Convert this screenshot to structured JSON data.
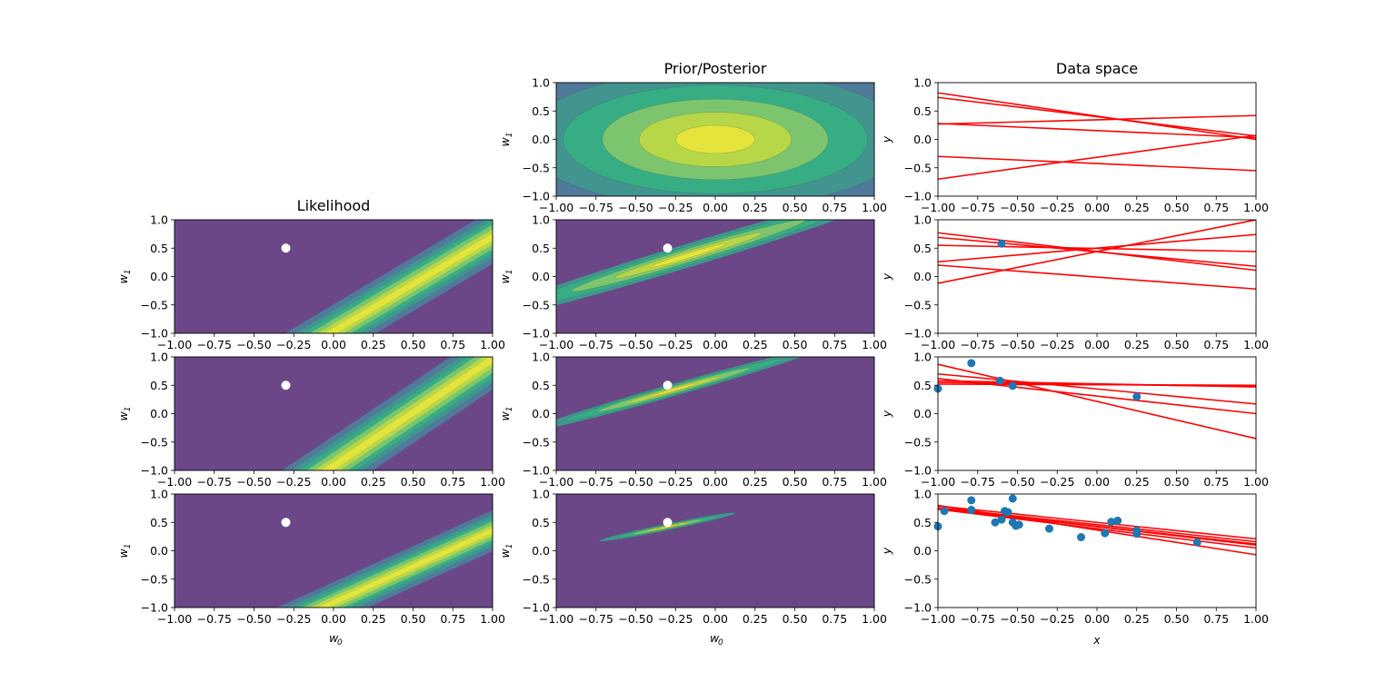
{
  "figure": {
    "title_prior_posterior": "Prior/Posterior",
    "title_likelihood": "Likelihood",
    "title_data_space": "Data space"
  },
  "axis_labels": {
    "w0_base": "w",
    "w0_sub": "0",
    "w1_base": "w",
    "w1_sub": "1",
    "x": "x",
    "y": "y"
  },
  "colors": {
    "background": "#6b4788",
    "levels": [
      "#6b4788",
      "#5f6198",
      "#4f7a9a",
      "#42958f",
      "#37ad84",
      "#7cc56e",
      "#b8d748",
      "#e4e43c"
    ],
    "line": "#ff0000",
    "points": "#1f77b4",
    "true_w": "#ffffff"
  },
  "true_w": [
    -0.3,
    0.5
  ],
  "chart_data": [
    {
      "type": "contour",
      "panel": "prior",
      "row": 0,
      "title": "Prior/Posterior",
      "xlabel": "",
      "ylabel": "w1",
      "xlim": [
        -1,
        1
      ],
      "ylim": [
        -1,
        1
      ],
      "xticks": [
        "−1.00",
        "−0.75",
        "−0.50",
        "−0.25",
        "0.00",
        "0.25",
        "0.50",
        "0.75",
        "1.00"
      ],
      "yticks": [
        "−1.0",
        "−0.5",
        "0.0",
        "0.5",
        "1.0"
      ],
      "mean": [
        0,
        0
      ],
      "sx": 0.5,
      "sy": 0.5,
      "rot": 0,
      "rings": [
        [
          0.92,
          0.92
        ],
        [
          0.73,
          0.73
        ],
        [
          0.58,
          0.58
        ],
        [
          0.43,
          0.43
        ],
        [
          0.29,
          0.29
        ],
        [
          0.15,
          0.15
        ]
      ],
      "show_true": false
    },
    {
      "type": "contour",
      "panel": "likelihood",
      "row": 1,
      "title": "Likelihood",
      "xlabel": "",
      "ylabel": "w1",
      "xlim": [
        -1,
        1
      ],
      "ylim": [
        -1,
        1
      ],
      "xticks": [
        "−1.00",
        "−0.75",
        "−0.50",
        "−0.25",
        "0.00",
        "0.25",
        "0.50",
        "0.75",
        "1.00"
      ],
      "yticks": [
        "−1.0",
        "−0.5",
        "0.0",
        "0.5",
        "1.0"
      ],
      "band": {
        "x_obs": -0.6,
        "y_obs": 0.58,
        "centers": [
          0.95,
          0.74,
          0.58,
          0.43,
          0.27,
          0.12
        ]
      },
      "show_true": true
    },
    {
      "type": "contour",
      "panel": "posterior",
      "row": 1,
      "title": "",
      "xlabel": "",
      "ylabel": "w1",
      "xlim": [
        -1,
        1
      ],
      "ylim": [
        -1,
        1
      ],
      "xticks": [
        "−1.00",
        "−0.75",
        "−0.50",
        "−0.25",
        "0.00",
        "0.25",
        "0.50",
        "0.75",
        "1.00"
      ],
      "yticks": [
        "−1.0",
        "−0.5",
        "0.0",
        "0.5",
        "1.0"
      ],
      "mean": [
        -0.17,
        0.37
      ],
      "sx": 0.54,
      "sy": 0.075,
      "rot": 0.32,
      "rings": [
        [
          0.83,
          0.84
        ],
        [
          0.61,
          0.66
        ],
        [
          0.43,
          0.47
        ],
        [
          0.27,
          0.31
        ],
        [
          0.14,
          0.17
        ]
      ],
      "show_true": true
    },
    {
      "type": "contour",
      "panel": "likelihood",
      "row": 2,
      "title": "",
      "xlabel": "",
      "ylabel": "w1",
      "xlim": [
        -1,
        1
      ],
      "ylim": [
        -1,
        1
      ],
      "xticks": [
        "−1.00",
        "−0.75",
        "−0.50",
        "−0.25",
        "0.00",
        "0.25",
        "0.50",
        "0.75",
        "1.00"
      ],
      "yticks": [
        "−1.0",
        "−0.5",
        "0.0",
        "0.5",
        "1.0"
      ],
      "band": {
        "x_obs": -0.53,
        "y_obs": 0.49,
        "centers": [
          0.95,
          0.74,
          0.58,
          0.43,
          0.27,
          0.12
        ]
      },
      "show_true": true
    },
    {
      "type": "contour",
      "panel": "posterior",
      "row": 2,
      "title": "",
      "xlabel": "",
      "ylabel": "w1",
      "xlim": [
        -1,
        1
      ],
      "ylim": [
        -1,
        1
      ],
      "xticks": [
        "−1.00",
        "−0.75",
        "−0.50",
        "−0.25",
        "0.00",
        "0.25",
        "0.50",
        "0.75",
        "1.00"
      ],
      "yticks": [
        "−1.0",
        "−0.5",
        "0.0",
        "0.5",
        "1.0"
      ],
      "mean": [
        -0.26,
        0.42
      ],
      "sx": 0.35,
      "sy": 0.04,
      "rot": 0.3,
      "rings": [
        [
          0.83,
          0.84
        ],
        [
          0.61,
          0.66
        ],
        [
          0.43,
          0.47
        ],
        [
          0.27,
          0.31
        ],
        [
          0.14,
          0.17
        ]
      ],
      "show_true": true
    },
    {
      "type": "contour",
      "panel": "likelihood",
      "row": 3,
      "title": "",
      "xlabel": "w0",
      "ylabel": "w1",
      "xlim": [
        -1,
        1
      ],
      "ylim": [
        -1,
        1
      ],
      "xticks": [
        "−1.00",
        "−0.75",
        "−0.50",
        "−0.25",
        "0.00",
        "0.25",
        "0.50",
        "0.75",
        "1.00"
      ],
      "yticks": [
        "−1.0",
        "−0.5",
        "0.0",
        "0.5",
        "1.0"
      ],
      "band": {
        "x_obs": -0.79,
        "y_obs": 0.72,
        "centers": [
          0.95,
          0.74,
          0.58,
          0.43,
          0.27,
          0.12
        ]
      },
      "show_true": true
    },
    {
      "type": "contour",
      "panel": "posterior",
      "row": 3,
      "title": "",
      "xlabel": "w0",
      "ylabel": "w1",
      "xlim": [
        -1,
        1
      ],
      "ylim": [
        -1,
        1
      ],
      "xticks": [
        "−1.00",
        "−0.75",
        "−0.50",
        "−0.25",
        "0.00",
        "0.25",
        "0.50",
        "0.75",
        "1.00"
      ],
      "yticks": [
        "−1.0",
        "−0.5",
        "0.0",
        "0.5",
        "1.0"
      ],
      "mean": [
        -0.3,
        0.42
      ],
      "sx": 0.16,
      "sy": 0.022,
      "rot": 0.22,
      "rings": [
        [
          0.83,
          0.84
        ],
        [
          0.61,
          0.66
        ],
        [
          0.43,
          0.47
        ],
        [
          0.27,
          0.31
        ],
        [
          0.14,
          0.17
        ]
      ],
      "show_true": true
    },
    {
      "type": "line",
      "panel": "data",
      "row": 0,
      "title": "Data space",
      "xlabel": "",
      "ylabel": "y",
      "xlim": [
        -1,
        1
      ],
      "ylim": [
        -1,
        1
      ],
      "xticks": [
        "−1.00",
        "−0.75",
        "−0.50",
        "−0.25",
        "0.00",
        "0.25",
        "0.50",
        "0.75",
        "1.00"
      ],
      "yticks": [
        "−1.0",
        "−0.5",
        "0.0",
        "0.5",
        "1.0"
      ],
      "lines": [
        [
          0.82,
          0.0
        ],
        [
          0.74,
          0.06
        ],
        [
          0.27,
          0.42
        ],
        [
          0.28,
          0.03
        ],
        [
          -0.3,
          -0.55
        ],
        [
          -0.7,
          0.07
        ]
      ],
      "points": []
    },
    {
      "type": "line",
      "panel": "data",
      "row": 1,
      "title": "",
      "xlabel": "",
      "ylabel": "y",
      "xlim": [
        -1,
        1
      ],
      "ylim": [
        -1,
        1
      ],
      "xticks": [
        "−1.00",
        "−0.75",
        "−0.50",
        "−0.25",
        "0.00",
        "0.25",
        "0.50",
        "0.75",
        "1.00"
      ],
      "yticks": [
        "−1.0",
        "−0.5",
        "0.0",
        "0.5",
        "1.0"
      ],
      "lines": [
        [
          0.77,
          0.11
        ],
        [
          0.69,
          0.18
        ],
        [
          0.55,
          0.44
        ],
        [
          0.26,
          0.74
        ],
        [
          0.2,
          -0.22
        ],
        [
          -0.12,
          1.0
        ]
      ],
      "points": [
        [
          -0.6,
          0.58
        ]
      ]
    },
    {
      "type": "line",
      "panel": "data",
      "row": 2,
      "title": "",
      "xlabel": "",
      "ylabel": "y",
      "xlim": [
        -1,
        1
      ],
      "ylim": [
        -1,
        1
      ],
      "xticks": [
        "−1.00",
        "−0.75",
        "−0.50",
        "−0.25",
        "0.00",
        "0.25",
        "0.50",
        "0.75",
        "1.00"
      ],
      "yticks": [
        "−1.0",
        "−0.5",
        "0.0",
        "0.5",
        "1.0"
      ],
      "lines": [
        [
          0.55,
          0.48
        ],
        [
          0.58,
          0.47
        ],
        [
          0.52,
          0.5
        ],
        [
          0.7,
          0.17
        ],
        [
          0.62,
          0.0
        ],
        [
          0.87,
          -0.44
        ]
      ],
      "points": [
        [
          -1.0,
          0.44
        ],
        [
          -0.79,
          0.89
        ],
        [
          -0.61,
          0.58
        ],
        [
          -0.53,
          0.49
        ],
        [
          0.25,
          0.3
        ]
      ]
    },
    {
      "type": "line",
      "panel": "data",
      "row": 3,
      "title": "",
      "xlabel": "x",
      "ylabel": "y",
      "xlim": [
        -1,
        1
      ],
      "ylim": [
        -1,
        1
      ],
      "xticks": [
        "−1.00",
        "−0.75",
        "−0.50",
        "−0.25",
        "0.00",
        "0.25",
        "0.50",
        "0.75",
        "1.00"
      ],
      "yticks": [
        "−1.0",
        "−0.5",
        "0.0",
        "0.5",
        "1.0"
      ],
      "lines": [
        [
          0.79,
          0.21
        ],
        [
          0.75,
          0.1
        ],
        [
          0.73,
          0.05
        ],
        [
          0.8,
          -0.07
        ],
        [
          0.76,
          0.16
        ],
        [
          0.74,
          0.12
        ]
      ],
      "points": [
        [
          -1.0,
          0.43
        ],
        [
          -0.96,
          0.7
        ],
        [
          -0.79,
          0.89
        ],
        [
          -0.79,
          0.72
        ],
        [
          -0.64,
          0.5
        ],
        [
          -0.6,
          0.55
        ],
        [
          -0.58,
          0.7
        ],
        [
          -0.56,
          0.68
        ],
        [
          -0.53,
          0.92
        ],
        [
          -0.53,
          0.5
        ],
        [
          -0.51,
          0.44
        ],
        [
          -0.49,
          0.46
        ],
        [
          -0.3,
          0.39
        ],
        [
          -0.1,
          0.24
        ],
        [
          0.05,
          0.31
        ],
        [
          0.09,
          0.51
        ],
        [
          0.13,
          0.53
        ],
        [
          0.25,
          0.36
        ],
        [
          0.25,
          0.3
        ],
        [
          0.63,
          0.15
        ]
      ]
    }
  ]
}
